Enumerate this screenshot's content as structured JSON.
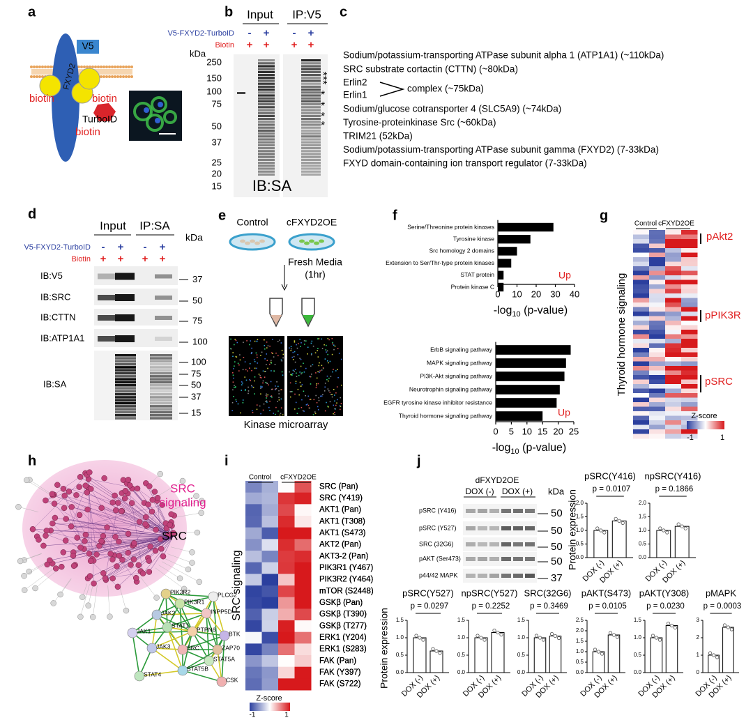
{
  "panel_labels": [
    "a",
    "b",
    "c",
    "d",
    "e",
    "f",
    "g",
    "h",
    "i",
    "j"
  ],
  "a": {
    "tag": "V5",
    "protein": "FXYD2",
    "biotin": [
      "biotin",
      "biotin",
      "biotin"
    ],
    "enzyme": "TurboID"
  },
  "b": {
    "columns": [
      "Input",
      "IP:V5"
    ],
    "construct": "V5-FXYD2-TurboID",
    "treatment": "Biotin",
    "construct_signs": [
      "-",
      "+",
      "-",
      "+"
    ],
    "treatment_signs": [
      "+",
      "+",
      "+",
      "+"
    ],
    "unit": "kDa",
    "markers": [
      250,
      150,
      100,
      75,
      50,
      37,
      25,
      20,
      15
    ],
    "stars": [
      "***",
      "*",
      "*",
      "*",
      "*"
    ],
    "blot": "IB:SA"
  },
  "c": {
    "lines_top": [
      "Sodium/potassium-transporting ATPase subunit alpha 1 (ATP1A1) (~110kDa)",
      "SRC substrate cortactin (CTTN) (~80kDa)"
    ],
    "erlins": [
      "Erlin2",
      "Erlin1"
    ],
    "complex": "complex (~75kDa)",
    "lines_bottom": [
      "Sodium/glucose cotransporter 4 (SLC5A9) (~74kDa)",
      "Tyrosine-proteinkinase Src (~60kDa)",
      "TRIM21 (52kDa)",
      "Sodium/potassium-transporting ATPase subunit gamma (FXYD2) (7-33kDa)",
      "FXYD domain-containing ion transport regulator (7-33kDa)"
    ]
  },
  "d": {
    "columns": [
      "Input",
      "IP:SA"
    ],
    "construct": "V5-FXYD2-TurboID",
    "treatment": "Biotin",
    "construct_signs": [
      "-",
      "+",
      "-",
      "+"
    ],
    "treatment_signs": [
      "+",
      "+",
      "+",
      "+"
    ],
    "unit": "kDa",
    "blots": [
      {
        "label": "IB:V5",
        "marker": 37
      },
      {
        "label": "IB:SRC",
        "marker": 50
      },
      {
        "label": "IB:CTTN",
        "marker": 75
      },
      {
        "label": "IB:ATP1A1",
        "marker": 100
      }
    ],
    "sa_blot": "IB:SA",
    "sa_markers": [
      100,
      75,
      50,
      37,
      15
    ]
  },
  "e": {
    "groups": [
      "Control",
      "cFXYD2OE"
    ],
    "step": "Fresh Media",
    "duration": "(1hr)",
    "caption": "Kinase microarray"
  },
  "f": {
    "top": {
      "categories": [
        "Serine/Threonine protein kinases",
        "Tyrosine kinase",
        "Src homology 2 domains",
        "Extension to Ser/Thr-type protein kinases",
        "STAT protein",
        "Protein kinase C"
      ],
      "values": [
        29,
        17,
        10,
        7,
        3,
        3
      ],
      "color": "#000000",
      "xlim": [
        0,
        40
      ],
      "xticks": [
        0,
        10,
        20,
        30,
        40
      ],
      "annotation": "Up",
      "xlabel": [
        "-log",
        "10",
        " (p-value)"
      ]
    },
    "bottom": {
      "categories": [
        "ErbB signaling pathway",
        "MAPK signaling pathway",
        "PI3K-Akt signaling pathway",
        "Neurotrophin signaling pathway",
        "EGFR tyrosine kinase inhibitor resistance",
        "Thyroid hormone signaling pathway"
      ],
      "values": [
        24,
        22.5,
        22,
        20.5,
        19.5,
        15
      ],
      "color": "#000000",
      "xlim": [
        0,
        25
      ],
      "xticks": [
        0,
        5,
        10,
        15,
        20,
        25
      ],
      "annotation": "Up",
      "xlabel": [
        "-log",
        "10",
        " (p-value)"
      ]
    }
  },
  "g": {
    "groups": [
      "Control",
      "cFXYD2OE"
    ],
    "ylabel": "Thyroid hormone signaling",
    "highlights": [
      "pAkt2",
      "pPIK3R",
      "pSRC"
    ],
    "legend_title": "Z-score",
    "legend_ticks": [
      -1,
      1
    ]
  },
  "h": {
    "cluster": [
      "SRC",
      "signaling"
    ],
    "hub": "SRC",
    "nodes": [
      "PIK3R2",
      "PLCG2",
      "JAK2",
      "PIK3R1",
      "INPP5D",
      "BTK",
      "JAK1",
      "STAT1",
      "PTPN6",
      "ZAP70",
      "JAK3",
      "SRC",
      "STAT5A",
      "STAT4",
      "STAT5B",
      "CSK"
    ]
  },
  "i": {
    "groups": [
      "Control",
      "cFXYD2OE"
    ],
    "ylabel": "SRC signaling",
    "rows": [
      "SRC (Pan)",
      "SRC (Y419)",
      "AKT1 (Pan)",
      "AKT1 (T308)",
      "AKT1 (S473)",
      "AKT2 (Pan)",
      "AKT3-2 (Pan)",
      "PIK3R1 (Y467)",
      "PIK3R2 (Y464)",
      "mTOR (S2448)",
      "GSKβ (Pan)",
      "GSKβ (T390)",
      "GSKβ (T277)",
      "ERK1 (Y204)",
      "ERK1 (S283)",
      "FAK (Pan)",
      "FAK (Y397)",
      "FAK (S722)"
    ],
    "legend_title": "Z-score",
    "legend_ticks": [
      -1,
      1
    ]
  },
  "j": {
    "header": "dFXYD2OE",
    "conditions": [
      "DOX (-)",
      "DOX (+)"
    ],
    "unit": "kDa",
    "blots": [
      {
        "label": "pSRC (Y416)",
        "marker": 50
      },
      {
        "label": "pSRC (Y527)",
        "marker": 50
      },
      {
        "label": "SRC (32G6)",
        "marker": 50
      },
      {
        "label": "pAKT (Ser473)",
        "marker": 50
      },
      {
        "label": "p44/42 MAPK",
        "marker": 37
      }
    ],
    "ylabel": "Protein expression",
    "charts": [
      {
        "title": "pSRC(Y416)",
        "p_value": "p = 0.0107",
        "values": [
          1.0,
          1.35
        ],
        "ylim": [
          0,
          2
        ],
        "yticks": [
          {
            "value": 0,
            "label": "0.0"
          },
          {
            "value": 0.5,
            "label": "0.5"
          },
          {
            "value": 1,
            "label": "1.0"
          },
          {
            "value": 1.5,
            "label": "1.5"
          },
          {
            "value": 2,
            "label": "2.0"
          }
        ]
      },
      {
        "title": "npSRC(Y416)",
        "p_value": "p = 0.1866",
        "values": [
          1.0,
          1.15
        ],
        "ylim": [
          0,
          2
        ],
        "yticks": [
          {
            "value": 0,
            "label": "0.0"
          },
          {
            "value": 0.5,
            "label": "0.5"
          },
          {
            "value": 1,
            "label": "1.0"
          },
          {
            "value": 1.5,
            "label": "1.5"
          },
          {
            "value": 2,
            "label": "2.0"
          }
        ]
      },
      {
        "title": "pSRC(Y527)",
        "p_value": "p = 0.0297",
        "values": [
          1.0,
          0.62
        ],
        "ylim": [
          0,
          1.5
        ],
        "yticks": [
          {
            "value": 0,
            "label": "0.0"
          },
          {
            "value": 0.5,
            "label": "0.5"
          },
          {
            "value": 1,
            "label": "1.0"
          },
          {
            "value": 1.5,
            "label": "1.5"
          }
        ]
      },
      {
        "title": "npSRC(Y527)",
        "p_value": "p = 0.2252",
        "values": [
          1.0,
          1.15
        ],
        "ylim": [
          0,
          1.5
        ],
        "yticks": [
          {
            "value": 0,
            "label": "0.0"
          },
          {
            "value": 0.5,
            "label": "0.5"
          },
          {
            "value": 1,
            "label": "1.0"
          },
          {
            "value": 1.5,
            "label": "1.5"
          }
        ]
      },
      {
        "title": "SRC(32G6)",
        "p_value": "p = 0.3469",
        "values": [
          1.0,
          1.05
        ],
        "ylim": [
          0,
          1.5
        ],
        "yticks": [
          {
            "value": 0,
            "label": "0.0"
          },
          {
            "value": 0.5,
            "label": "0.5"
          },
          {
            "value": 1,
            "label": "1.0"
          },
          {
            "value": 1.5,
            "label": "1.5"
          }
        ]
      },
      {
        "title": "pAKT(S473)",
        "p_value": "p = 0.0105",
        "values": [
          1.0,
          1.8
        ],
        "ylim": [
          0,
          2.5
        ],
        "yticks": [
          {
            "value": 0,
            "label": "0.0"
          },
          {
            "value": 0.5,
            "label": "0.5"
          },
          {
            "value": 1,
            "label": "1.0"
          },
          {
            "value": 1.5,
            "label": "1.5"
          },
          {
            "value": 2,
            "label": "2.0"
          },
          {
            "value": 2.5,
            "label": "2.5"
          }
        ]
      },
      {
        "title": "pAKT(Y308)",
        "p_value": "p = 0.0230",
        "values": [
          1.0,
          1.35
        ],
        "ylim": [
          0,
          1.5
        ],
        "yticks": [
          {
            "value": 0,
            "label": "0.0"
          },
          {
            "value": 0.5,
            "label": "0.5"
          },
          {
            "value": 1,
            "label": "1.0"
          },
          {
            "value": 1.5,
            "label": "1.5"
          }
        ]
      },
      {
        "title": "pMAPK",
        "p_value": "p = 0.0003",
        "values": [
          1.0,
          2.6
        ],
        "ylim": [
          0,
          3
        ],
        "yticks": [
          0,
          1,
          2,
          3
        ]
      }
    ]
  }
}
